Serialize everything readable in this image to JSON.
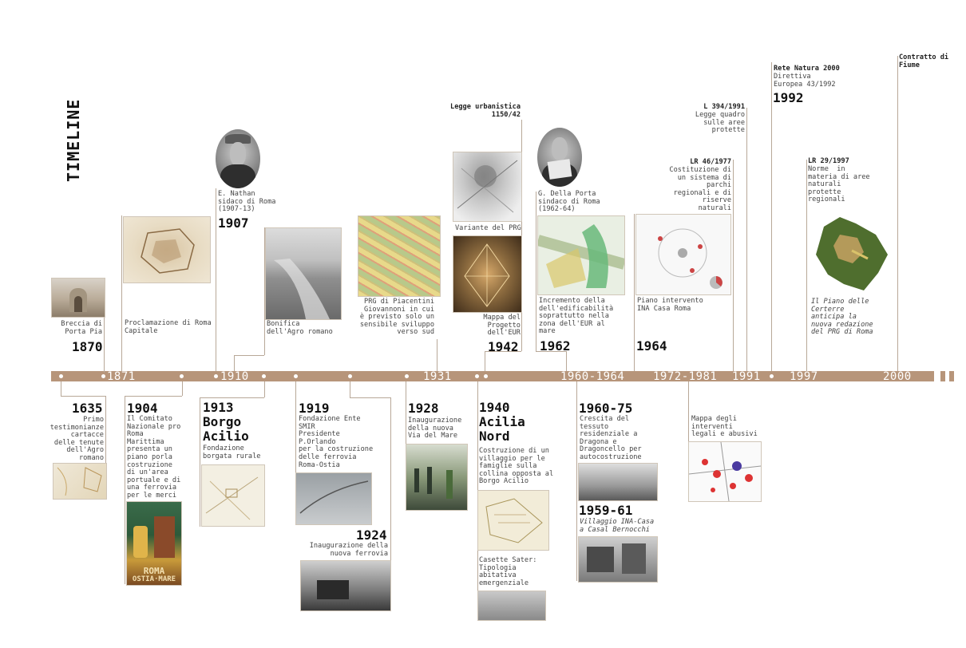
{
  "title": "TIMELINE",
  "bar_labels": [
    "1871",
    "1910",
    "1931",
    "1960-1964",
    "1972-1981",
    "1991",
    "1997",
    "2000"
  ],
  "top_events": {
    "e1870": {
      "text": "Breccia di\nPorta Pia",
      "year": "1870"
    },
    "e1871": {
      "text": "Proclamazione di Roma\nCapitale"
    },
    "e1907": {
      "text": "E. Nathan\nsidaco di Roma\n(1907-13)",
      "year": "1907"
    },
    "e1910": {
      "text": "Bonifica\ndell'Agro romano"
    },
    "e1931": {
      "text": "PRG di Piacentini\nGiovannoni in cui\nè previsto solo un\nsensibile sviluppo\nverso sud"
    },
    "e1942": {
      "head": "Legge urbanistica\n1150/42",
      "text1": "Variante del PRG",
      "text2": "Mappa del\nProgetto\ndell'EUR",
      "year": "1942"
    },
    "e1962": {
      "text": "G. Della Porta\nsindaco di Roma\n(1962-64)",
      "text2": "Incremento della\ndell'edificabilità\nsoprattutto nella\nzona dell'EUR al\nmare",
      "year": "1962"
    },
    "e1964": {
      "text": "Piano intervento\nINA Casa Roma",
      "year": "1964"
    },
    "e1977": {
      "head": "LR 46/1977",
      "text": "Costituzione di\nun sistema di\nparchi\nregionali e di\nriserve\nnaturali"
    },
    "e1991": {
      "head": "L 394/1991",
      "text": "Legge quadro\nsulle aree\nprotette"
    },
    "e1992": {
      "head": "Rete Natura 2000",
      "text": "Direttiva\nEuropea 43/1992",
      "year": "1992"
    },
    "e1997": {
      "head": "LR 29/1997",
      "text": "Norme  in\nmateria di aree\nnaturali\nprotette\nregionali",
      "text2": "Il Piano delle\nCerterre\nanticipa la\nnuova redazione\ndel PRG di Roma"
    },
    "e2000": {
      "head": "Contratto di\nFiume"
    }
  },
  "bottom_events": {
    "e1635": {
      "year": "1635",
      "text": "Primo\ntestimonianze\ncartacce\ndelle tenute\ndell'Agro\nromano"
    },
    "e1904": {
      "year": "1904",
      "text": "Il Comitato\nNazionale pro\nRoma\nMarittima\npresenta un\npiano porla\ncostruzione\ndi un'area\nportuale e di\nuna ferrovia\nper le merci",
      "poster_line1": "ROMA",
      "poster_line2": "OSTIA·MARE"
    },
    "e1913": {
      "year": "1913\nBorgo\nAcilio",
      "text": "Fondazione\nborgata rurale"
    },
    "e1919": {
      "year": "1919",
      "text": "Fondazione Ente\nSMIR\nPresidente\nP.Orlando\nper la costruzione\ndelle ferrovia\nRoma-Ostia"
    },
    "e1924": {
      "year": "1924",
      "text": "Inaugurazione della\nnuova ferrovia"
    },
    "e1928": {
      "year": "1928",
      "text": "Inaugurazione\ndella nuova\nVia del Mare"
    },
    "e1940": {
      "year": "1940\nAcilia\nNord",
      "text": "Costruzione di un\nvillaggio per le\nfamiglie sulla\ncollina opposta al\nBorgo Acilio",
      "text2": "Casette Sater:\nTipologia\nabitativa\nemergenziale"
    },
    "e1960": {
      "year": "1960-75",
      "text": "Crescita del\ntessuto\nresidenziale a\nDragona e\nDragoncello per\nautocostruzione"
    },
    "e1959": {
      "year": "1959-61",
      "text": "Villaggio INA-Casa\na Casal Bernocchi"
    },
    "e1972": {
      "text": "Mappa degli\ninterventi\nlegali e abusivi"
    }
  }
}
